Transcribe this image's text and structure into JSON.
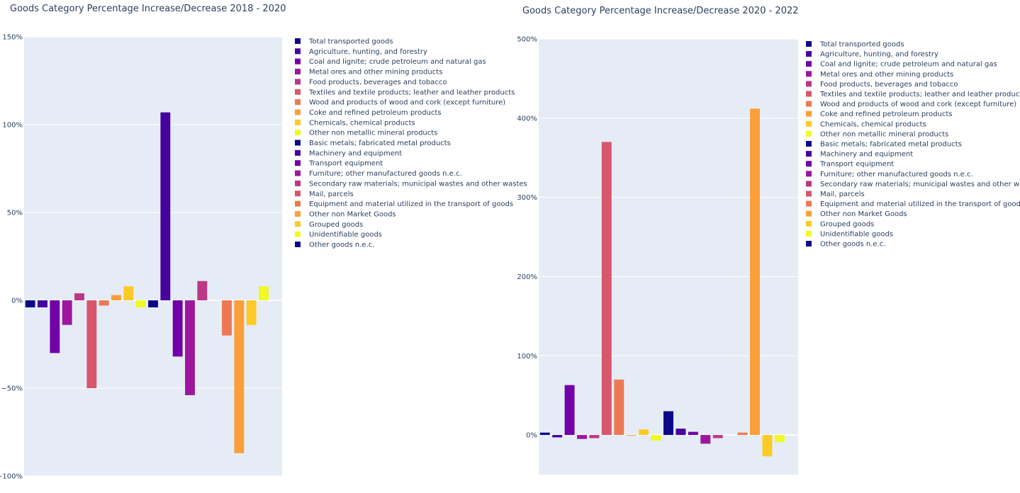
{
  "chart_data": [
    {
      "type": "bar",
      "title": "Goods Category Percentage Increase/Decrease 2018 - 2020",
      "xlabel": "",
      "ylabel": "",
      "ylim": [
        -100,
        150
      ],
      "yticks": [
        150,
        100,
        50,
        0,
        -50,
        -100
      ],
      "ytick_labels": [
        "150%",
        "100%",
        "50%",
        "0%",
        "−50%",
        "−100%"
      ],
      "grid": true,
      "legend_position": "right",
      "categories": [
        "Total transported goods",
        "Agriculture, hunting, and forestry",
        "Coal and lignite; crude petroleum and natural gas",
        "Metal ores and other mining products",
        "Food products, beverages and tobacco",
        "Textiles and textile products; leather and leather products",
        "Wood and products of wood and cork (except furniture)",
        "Coke and refined petroleum products",
        "Chemicals, chemical products",
        "Other non metallic mineral products",
        "Basic metals; fabricated metal products",
        "Machinery and equipment",
        "Transport equipment",
        "Furniture; other manufactured goods n.e.c.",
        "Secondary raw materials; municipal wastes and other wastes",
        "Mail, parcels",
        "Equipment and material utilized in the transport of goods",
        "Other non Market Goods",
        "Grouped goods",
        "Unidentifiable goods",
        "Other goods n.e.c."
      ],
      "values": [
        -4,
        -4,
        -30,
        -14,
        4,
        -50,
        -3,
        3,
        8,
        -4,
        -4,
        107,
        -32,
        -54,
        11,
        0,
        -20,
        -87,
        -14,
        8,
        0
      ]
    },
    {
      "type": "bar",
      "title": "Goods Category Percentage Increase/Decrease 2020 - 2022",
      "xlabel": "",
      "ylabel": "",
      "ylim": [
        -50,
        500
      ],
      "yticks": [
        500,
        400,
        300,
        200,
        100,
        0
      ],
      "ytick_labels": [
        "500%",
        "400%",
        "300%",
        "200%",
        "100%",
        "0%"
      ],
      "grid": true,
      "legend_position": "right",
      "categories": [
        "Total transported goods",
        "Agriculture, hunting, and forestry",
        "Coal and lignite; crude petroleum and natural gas",
        "Metal ores and other mining products",
        "Food products, beverages and tobacco",
        "Textiles and textile products; leather and leather products",
        "Wood and products of wood and cork (except furniture)",
        "Coke and refined petroleum products",
        "Chemicals, chemical products",
        "Other non metallic mineral products",
        "Basic metals; fabricated metal products",
        "Machinery and equipment",
        "Transport equipment",
        "Furniture; other manufactured goods n.e.c.",
        "Secondary raw materials; municipal wastes and other wastes",
        "Mail, parcels",
        "Equipment and material utilized in the transport of goods",
        "Other non Market Goods",
        "Grouped goods",
        "Unidentifiable goods",
        "Other goods n.e.c."
      ],
      "values": [
        3,
        -3,
        63,
        -5,
        -4,
        370,
        70,
        -1,
        7,
        -7,
        30,
        8,
        4,
        -11,
        -4,
        0,
        3,
        412,
        -27,
        -9,
        0
      ]
    }
  ],
  "palette": [
    "#0d0887",
    "#46039f",
    "#7201a8",
    "#9c179e",
    "#bd3786",
    "#d8576b",
    "#ed7953",
    "#fb9f3a",
    "#fdca26",
    "#f0f921",
    "#0d0887",
    "#46039f",
    "#7201a8",
    "#9c179e",
    "#bd3786",
    "#d8576b",
    "#ed7953",
    "#fb9f3a",
    "#fdca26",
    "#f0f921",
    "#0d0887"
  ],
  "colors": {
    "plot_bg": "#e5ecf6",
    "grid": "#ffffff",
    "text": "#2a3f5f"
  }
}
